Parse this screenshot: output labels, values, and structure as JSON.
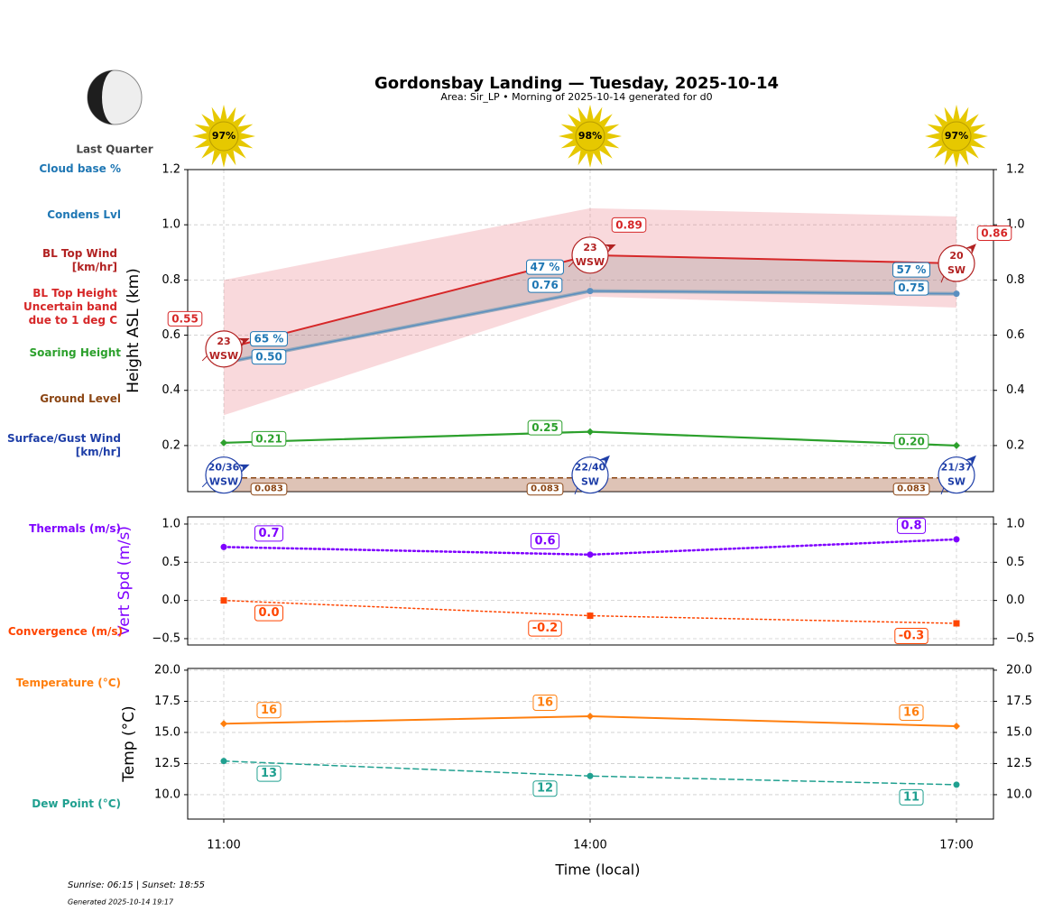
{
  "header": {
    "title": "Gordonsbay Landing — Tuesday, 2025-10-14",
    "subtitle": "Area: Sir_LP • Morning of 2025-10-14 generated for d0",
    "moon_phase": "Last Quarter"
  },
  "sunshine": {
    "values": [
      97,
      98,
      97
    ],
    "value_labels": [
      "97%",
      "98%",
      "97%"
    ]
  },
  "footer": {
    "sun_times": "Sunrise: 06:15 | Sunset: 18:55",
    "generated": "Generated 2025-10-14 19:17"
  },
  "chart_data": [
    {
      "type": "line",
      "ylabel": "Height ASL (km)",
      "ylim": [
        0.033,
        1.2
      ],
      "yticks": [
        0.2,
        0.4,
        0.6,
        0.8,
        {
          "value": 1,
          "label": "1.0"
        },
        1.2
      ],
      "grid": true,
      "series": [
        {
          "name": "Cloud base %",
          "color": "#1f77b4",
          "values": [
            65,
            47,
            57
          ],
          "value_labels": [
            "65 %",
            "47 %",
            "57 %"
          ]
        },
        {
          "name": "Condens Lvl",
          "color": "#1f77b4",
          "values": [
            0.5,
            0.76,
            0.75
          ],
          "value_labels": [
            "0.50",
            "0.76",
            "0.75"
          ]
        },
        {
          "name": "BL Top Wind [km/hr]",
          "color": "#b22222",
          "values": [
            23,
            23,
            20
          ],
          "directions": [
            "WSW",
            "WSW",
            "SW"
          ]
        },
        {
          "name": "BL Top Height Uncertain band due to 1 deg C",
          "color": "#d62728",
          "values": [
            0.55,
            0.89,
            0.86
          ],
          "lower": [
            0.31,
            0.74,
            0.7
          ],
          "upper": [
            0.8,
            1.06,
            1.03
          ]
        },
        {
          "name": "Soaring Height",
          "color": "#2ca02c",
          "values": [
            0.21,
            0.25,
            0.2
          ],
          "value_labels": [
            "0.21",
            "0.25",
            "0.20"
          ],
          "marker": "diamond"
        },
        {
          "name": "Ground Level",
          "color": "#8b4513",
          "values": [
            0.083,
            0.083,
            0.083
          ]
        },
        {
          "name": "Surface/Gust Wind [km/hr]",
          "color": "#1f3fa8",
          "values": [
            20,
            22,
            21
          ],
          "gusts": [
            36,
            40,
            37
          ],
          "value_labels": [
            "20/36",
            "22/40",
            "21/37"
          ],
          "directions": [
            "WSW",
            "SW",
            "SW"
          ]
        }
      ]
    },
    {
      "type": "line",
      "ylabel": "Vert Spd (m/s)",
      "ylabel_color": "#7f00ff",
      "ylim": [
        -0.583,
        1.094
      ],
      "yticks": [
        {
          "value": -0.5,
          "label": "−0.5"
        },
        {
          "value": 0,
          "label": "0.0"
        },
        0.5,
        {
          "value": 1,
          "label": "1.0"
        }
      ],
      "grid": true,
      "series": [
        {
          "name": "Thermals (m/s)",
          "color": "#7f00ff",
          "values": [
            0.7,
            0.6,
            0.8
          ],
          "dash": "dotted",
          "width": 2.5,
          "marker": "circle"
        },
        {
          "name": "Convergence (m/s)",
          "color": "#ff4500",
          "values": [
            0,
            -0.2,
            -0.3
          ],
          "value_labels": [
            "0.0",
            "-0.2",
            "-0.3"
          ],
          "dash": "dotted",
          "width": 1.5,
          "marker": "square"
        }
      ]
    },
    {
      "type": "line",
      "ylabel": "Temp (°C)",
      "xlabel": "Time (local)",
      "categories": [
        "11:00",
        "14:00",
        "17:00"
      ],
      "ylim": [
        8.04,
        20.14
      ],
      "yticks": [
        {
          "value": 10,
          "label": "10.0"
        },
        12.5,
        {
          "value": 15,
          "label": "15.0"
        },
        17.5,
        {
          "value": 20,
          "label": "20.0"
        }
      ],
      "grid": true,
      "series": [
        {
          "name": "Temperature (°C)",
          "color": "#ff7f0e",
          "values": [
            15.7,
            16.3,
            15.5
          ],
          "value_labels": [
            "16",
            "16",
            "16"
          ],
          "dash": "solid",
          "width": 2,
          "marker": "diamond"
        },
        {
          "name": "Dew Point (°C)",
          "color": "#20a090",
          "values": [
            12.7,
            11.5,
            10.8
          ],
          "value_labels": [
            "13",
            "12",
            "11"
          ],
          "dash": "dashed",
          "width": 1.5,
          "marker": "circle"
        }
      ]
    }
  ]
}
